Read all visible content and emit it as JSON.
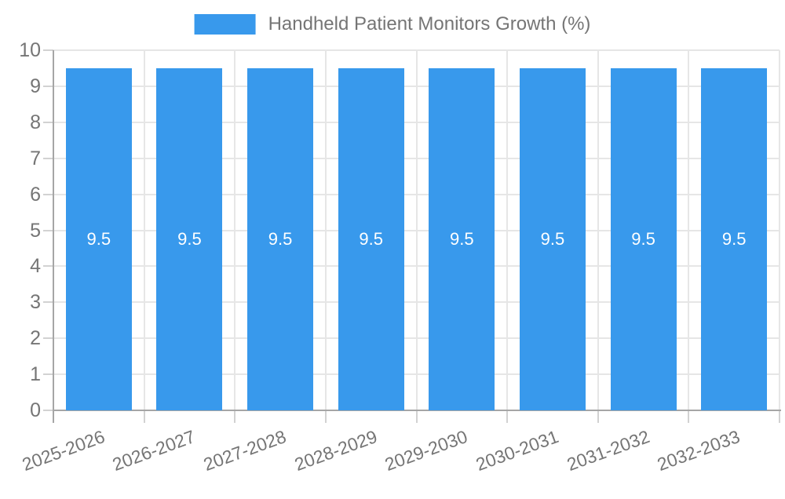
{
  "chart_data": {
    "type": "bar",
    "legend": "Handheld Patient Monitors Growth (%)",
    "legend_position": "top-center",
    "categories": [
      "2025-2026",
      "2026-2027",
      "2027-2028",
      "2028-2029",
      "2029-2030",
      "2030-2031",
      "2031-2032",
      "2032-2033"
    ],
    "values": [
      9.5,
      9.5,
      9.5,
      9.5,
      9.5,
      9.5,
      9.5,
      9.5
    ],
    "value_label_decimals": 1,
    "xlabel": "",
    "ylabel": "",
    "ylim": [
      0,
      10
    ],
    "ytick_step": 1,
    "grid": true,
    "colors": {
      "bar": "#3899EC",
      "grid": "#E6E6E6",
      "axis": "#A6A6A6",
      "tick": "#D2D2D2",
      "text": "#757575",
      "valueText": "#FFFFFF"
    }
  }
}
